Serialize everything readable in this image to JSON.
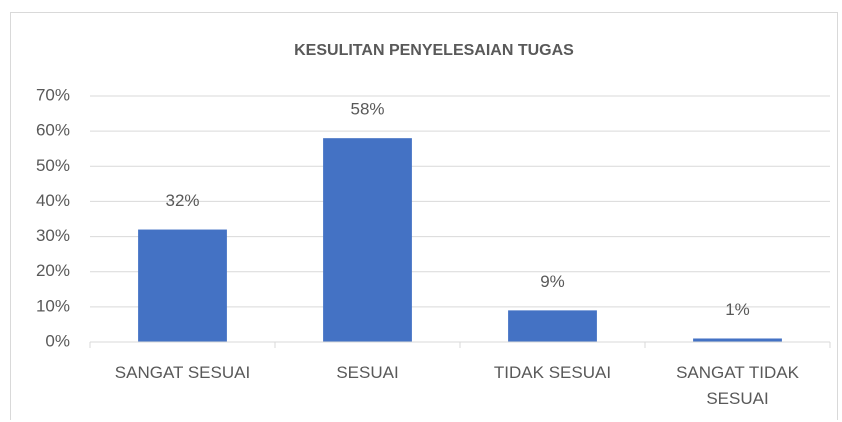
{
  "chart_data": {
    "type": "bar",
    "title": "KESULITAN PENYELESAIAN TUGAS",
    "categories": [
      "SANGAT SESUAI",
      "SESUAI",
      "TIDAK SESUAI",
      "SANGAT TIDAK SESUAI"
    ],
    "values": [
      32,
      58,
      9,
      1
    ],
    "value_labels": [
      "32%",
      "58%",
      "9%",
      "1%"
    ],
    "color": "#4472c4",
    "ylim": [
      0,
      70
    ],
    "yticks": [
      {
        "value": 0,
        "label": "0%"
      },
      {
        "value": 10,
        "label": "10%"
      },
      {
        "value": 20,
        "label": "20%"
      },
      {
        "value": 30,
        "label": "30%"
      },
      {
        "value": 40,
        "label": "40%"
      },
      {
        "value": 50,
        "label": "50%"
      },
      {
        "value": 60,
        "label": "60%"
      },
      {
        "value": 70,
        "label": "70%"
      }
    ],
    "grid": true
  }
}
